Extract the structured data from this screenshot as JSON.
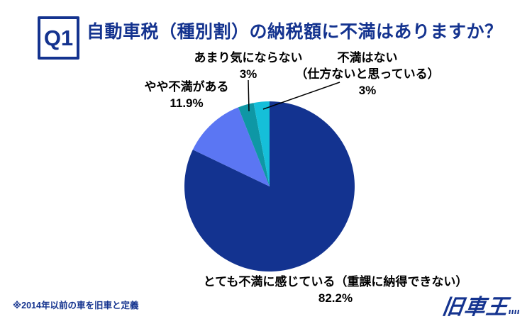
{
  "header": {
    "q_badge": "Q1",
    "title": "自動車税（種別割）の納税額に不満はありますか？"
  },
  "chart_data": {
    "type": "pie",
    "title": "自動車税（種別割）の納税額に不満はありますか？",
    "start_angle": "12 o'clock, clockwise",
    "legend_position": "labels around pie",
    "slices": [
      {
        "name": "very_dissatisfied",
        "label": "とても不満に感じている（重課に納得できない）",
        "pct": "82.2%",
        "value": 82.2,
        "color": "#133390"
      },
      {
        "name": "somewhat_dissatisfied",
        "label": "やや不満がある",
        "pct": "11.9%",
        "value": 11.9,
        "color": "#5b76f3"
      },
      {
        "name": "not_bothered",
        "label": "あまり気にならない",
        "pct": "3%",
        "value": 3,
        "color": "#0e97a5"
      },
      {
        "name": "no_dissatisfaction",
        "label": "不満はない",
        "label2": "（仕方ないと思っている）",
        "pct": "3%",
        "value": 3,
        "color": "#15bfd9"
      }
    ]
  },
  "footnote": {
    "text": "※2014年以前の車を旧車と定義"
  },
  "logo": {
    "text": "旧車王"
  }
}
